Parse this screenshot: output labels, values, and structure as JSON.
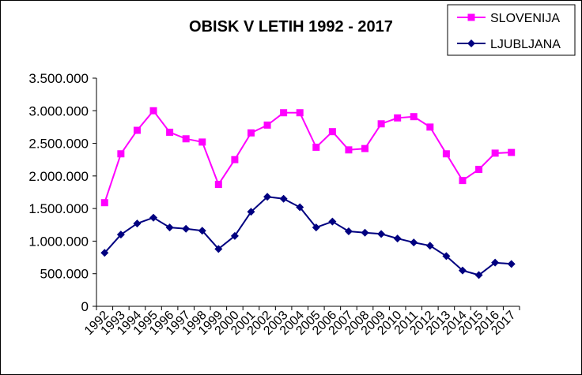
{
  "chart_data": {
    "type": "line",
    "title": "OBISK V LETIH 1992 - 2017",
    "xlabel": "",
    "ylabel": "",
    "ylim": [
      0,
      3500000
    ],
    "yticks": [
      0,
      500000,
      1000000,
      1500000,
      2000000,
      2500000,
      3000000,
      3500000
    ],
    "ytick_labels": [
      "0",
      "500.000",
      "1.000.000",
      "1.500.000",
      "2.000.000",
      "2.500.000",
      "3.000.000",
      "3.500.000"
    ],
    "grid": false,
    "legend_position": "top-right",
    "categories": [
      "1992",
      "1993",
      "1994",
      "1995",
      "1996",
      "1997",
      "1998",
      "1999",
      "2000",
      "2001",
      "2002",
      "2003",
      "2004",
      "2005",
      "2006",
      "2007",
      "2008",
      "2009",
      "2010",
      "2011",
      "2012",
      "2013",
      "2014",
      "2015",
      "2016",
      "2017"
    ],
    "series": [
      {
        "name": "SLOVENIJA",
        "color": "#ff00ff",
        "marker": "square",
        "values": [
          1590000,
          2340000,
          2700000,
          3000000,
          2670000,
          2570000,
          2520000,
          1870000,
          2250000,
          2660000,
          2780000,
          2970000,
          2970000,
          2440000,
          2680000,
          2400000,
          2420000,
          2800000,
          2890000,
          2910000,
          2750000,
          2340000,
          1930000,
          2100000,
          2350000,
          2360000
        ]
      },
      {
        "name": "LJUBLJANA",
        "color": "#000080",
        "marker": "diamond",
        "values": [
          820000,
          1100000,
          1270000,
          1360000,
          1210000,
          1190000,
          1160000,
          880000,
          1080000,
          1450000,
          1680000,
          1650000,
          1520000,
          1210000,
          1300000,
          1150000,
          1130000,
          1110000,
          1040000,
          980000,
          930000,
          770000,
          550000,
          480000,
          670000,
          650000
        ]
      }
    ]
  }
}
